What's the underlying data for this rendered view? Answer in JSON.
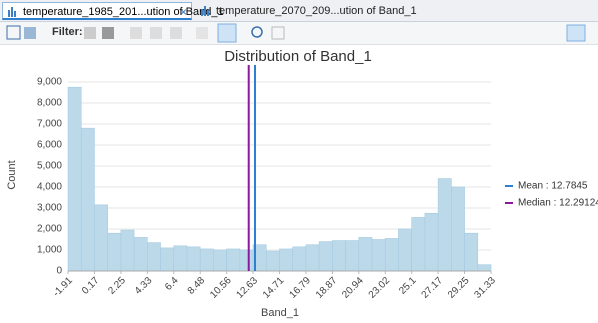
{
  "tabs": [
    {
      "label": "temperature_1985_201...ution of Band_1"
    },
    {
      "label": "temperature_2070_209...ution of Band_1"
    }
  ],
  "toolbar": {
    "filter_label": "Filter:"
  },
  "chart_data": {
    "type": "histogram",
    "title": "Distribution of Band_1",
    "x_label": "Band_1",
    "y_label": "Count",
    "bins": [
      -1.91,
      -0.87125,
      0.1675,
      1.20625,
      2.245,
      3.28375,
      4.3225,
      5.36125,
      6.4,
      7.43875,
      8.4775,
      9.51625,
      10.555,
      11.59375,
      12.6325,
      13.67125,
      14.71,
      15.74875,
      16.7875,
      17.82625,
      18.865,
      19.90375,
      20.9425,
      21.98125,
      23.02,
      24.05875,
      25.0975,
      26.13625,
      27.175,
      28.21375,
      29.2525,
      30.29125,
      31.33
    ],
    "values": [
      8750,
      6800,
      3150,
      1800,
      1950,
      1600,
      1350,
      1100,
      1200,
      1150,
      1050,
      1000,
      1050,
      1000,
      1250,
      950,
      1050,
      1150,
      1250,
      1400,
      1450,
      1450,
      1600,
      1500,
      1550,
      2000,
      2550,
      2750,
      4400,
      4000,
      1800,
      300
    ],
    "color": "#bcd9ea",
    "xlim": [
      -1.91,
      31.33
    ],
    "xticks": [
      -1.91,
      0.17,
      2.25,
      4.33,
      6.4,
      8.48,
      10.56,
      12.63,
      14.71,
      16.79,
      18.87,
      20.94,
      23.02,
      25.1,
      27.17,
      29.25,
      31.33
    ],
    "ylim": [
      0,
      9570
    ],
    "yticks": [
      0,
      {
        "value": 1000,
        "label": "1,000"
      },
      {
        "value": 2000,
        "label": "2,000"
      },
      {
        "value": 3000,
        "label": "3,000"
      },
      {
        "value": 4000,
        "label": "4,000"
      },
      {
        "value": 5000,
        "label": "5,000"
      },
      {
        "value": 6000,
        "label": "6,000"
      },
      {
        "value": 7000,
        "label": "7,000"
      },
      {
        "value": 8000,
        "label": "8,000"
      },
      {
        "value": 9000,
        "label": "9,000"
      }
    ],
    "grid": true,
    "legend_position": "right",
    "reference_lines": [
      {
        "label": "Mean : 12.7845",
        "value": 12.7845,
        "color": "#2f7fd1"
      },
      {
        "label": "Median : 12.29124",
        "value": 12.29124,
        "color": "#8a1a9b"
      }
    ]
  }
}
